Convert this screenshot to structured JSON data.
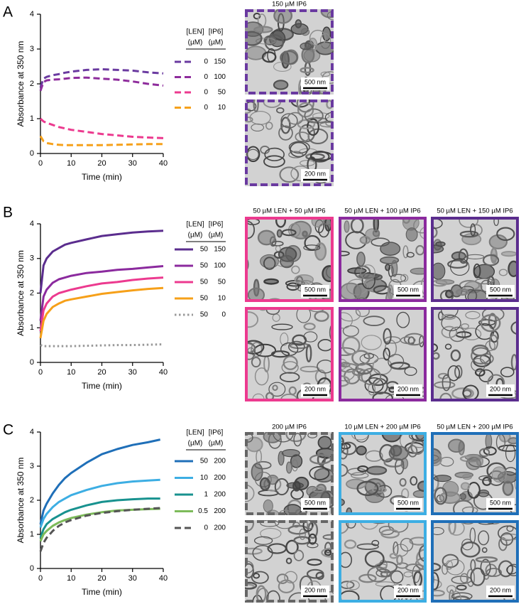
{
  "chart_data": [
    {
      "type": "line",
      "panel": "A",
      "xlabel": "Time (min)",
      "ylabel": "Absorbance at 350 nm",
      "x": [
        0,
        1,
        2,
        4,
        6,
        8,
        10,
        15,
        20,
        25,
        30,
        35,
        40
      ],
      "xlim": [
        0,
        40
      ],
      "xticks": [
        0,
        10,
        20,
        30,
        40
      ],
      "ylim": [
        0,
        4
      ],
      "yticks": [
        0,
        1,
        2,
        3,
        4
      ],
      "legend": {
        "columns": [
          "[LEN]",
          "[IP6]"
        ],
        "units": [
          "(µM)",
          "(µM)"
        ]
      },
      "series": [
        {
          "len": 0,
          "ip6": 150,
          "color": "#6a3aa0",
          "dash": "dashed",
          "values": [
            1.9,
            2.15,
            2.2,
            2.25,
            2.28,
            2.32,
            2.35,
            2.4,
            2.42,
            2.4,
            2.38,
            2.33,
            2.3
          ]
        },
        {
          "len": 0,
          "ip6": 100,
          "color": "#8e2c9c",
          "dash": "dashed",
          "values": [
            1.8,
            2.05,
            2.1,
            2.12,
            2.13,
            2.15,
            2.17,
            2.18,
            2.15,
            2.12,
            2.07,
            2.0,
            1.95
          ]
        },
        {
          "len": 0,
          "ip6": 50,
          "color": "#ec3a8f",
          "dash": "dashed",
          "values": [
            1.0,
            0.92,
            0.88,
            0.82,
            0.76,
            0.72,
            0.68,
            0.62,
            0.56,
            0.52,
            0.48,
            0.46,
            0.44
          ]
        },
        {
          "len": 0,
          "ip6": 10,
          "color": "#f6a11b",
          "dash": "dashed",
          "values": [
            0.5,
            0.35,
            0.3,
            0.27,
            0.25,
            0.24,
            0.24,
            0.24,
            0.24,
            0.25,
            0.26,
            0.27,
            0.27
          ]
        }
      ],
      "images": [
        {
          "title": "150 µM IP6",
          "color": "#6a3aa0",
          "border": "dashed",
          "scale_bars": [
            "500 nm",
            "200 nm"
          ]
        }
      ]
    },
    {
      "type": "line",
      "panel": "B",
      "xlabel": "Time (min)",
      "ylabel": "Absorbance at 350 nm",
      "x": [
        0,
        1,
        2,
        4,
        6,
        8,
        10,
        15,
        20,
        25,
        30,
        35,
        40
      ],
      "xlim": [
        0,
        40
      ],
      "xticks": [
        0,
        10,
        20,
        30,
        40
      ],
      "ylim": [
        0,
        4
      ],
      "yticks": [
        0,
        1,
        2,
        3,
        4
      ],
      "legend": {
        "columns": [
          "[LEN]",
          "[IP6]"
        ],
        "units": [
          "(µM)",
          "(µM)"
        ]
      },
      "series": [
        {
          "len": 50,
          "ip6": 150,
          "color": "#5b2d8e",
          "dash": "solid",
          "values": [
            2.0,
            2.8,
            3.0,
            3.2,
            3.3,
            3.4,
            3.45,
            3.55,
            3.65,
            3.7,
            3.75,
            3.78,
            3.8
          ]
        },
        {
          "len": 50,
          "ip6": 100,
          "color": "#8b2a9e",
          "dash": "solid",
          "values": [
            1.2,
            1.9,
            2.1,
            2.3,
            2.4,
            2.45,
            2.5,
            2.58,
            2.62,
            2.67,
            2.7,
            2.74,
            2.78
          ]
        },
        {
          "len": 50,
          "ip6": 50,
          "color": "#ec3a8f",
          "dash": "solid",
          "values": [
            0.9,
            1.5,
            1.7,
            1.9,
            2.0,
            2.05,
            2.1,
            2.2,
            2.28,
            2.32,
            2.38,
            2.42,
            2.45
          ]
        },
        {
          "len": 50,
          "ip6": 10,
          "color": "#f6a019",
          "dash": "solid",
          "values": [
            0.7,
            1.2,
            1.4,
            1.6,
            1.7,
            1.78,
            1.82,
            1.9,
            1.98,
            2.03,
            2.08,
            2.12,
            2.15
          ]
        },
        {
          "len": 50,
          "ip6": 0,
          "color": "#999999",
          "dash": "dotted",
          "values": [
            0.5,
            0.47,
            0.47,
            0.47,
            0.47,
            0.47,
            0.47,
            0.48,
            0.49,
            0.5,
            0.5,
            0.51,
            0.52
          ]
        }
      ],
      "images": [
        {
          "title": "50 µM LEN + 50 µM IP6",
          "color": "#ec3a8f",
          "border": "solid",
          "scale_bars": [
            "500 nm",
            "200 nm"
          ]
        },
        {
          "title": "50 µM LEN + 100 µM IP6",
          "color": "#8b2a9e",
          "border": "solid",
          "scale_bars": [
            "500 nm",
            "200 nm"
          ]
        },
        {
          "title": "50 µM LEN + 150 µM IP6",
          "color": "#5b2d8e",
          "border": "solid",
          "scale_bars": [
            "500 nm",
            "200 nm"
          ]
        }
      ]
    },
    {
      "type": "line",
      "panel": "C",
      "xlabel": "Time (min)",
      "ylabel": "Absorbance at 350 nm",
      "x": [
        0,
        1,
        2,
        4,
        6,
        8,
        10,
        15,
        20,
        25,
        30,
        35,
        39
      ],
      "xlim": [
        0,
        40
      ],
      "xticks": [
        0,
        10,
        20,
        30,
        40
      ],
      "ylim": [
        0,
        4
      ],
      "yticks": [
        0,
        1,
        2,
        3,
        4
      ],
      "legend": {
        "columns": [
          "[LEN]",
          "[IP6]"
        ],
        "units": [
          "(µM)",
          "(µM)"
        ]
      },
      "series": [
        {
          "len": 50,
          "ip6": 200,
          "color": "#1f6fb8",
          "dash": "solid",
          "values": [
            1.3,
            1.7,
            1.9,
            2.2,
            2.45,
            2.65,
            2.8,
            3.1,
            3.35,
            3.5,
            3.62,
            3.7,
            3.78
          ]
        },
        {
          "len": 10,
          "ip6": 200,
          "color": "#3daee3",
          "dash": "solid",
          "values": [
            1.2,
            1.45,
            1.6,
            1.8,
            1.95,
            2.05,
            2.15,
            2.3,
            2.42,
            2.5,
            2.55,
            2.58,
            2.6
          ]
        },
        {
          "len": 1,
          "ip6": 200,
          "color": "#18928f",
          "dash": "solid",
          "values": [
            0.9,
            1.15,
            1.3,
            1.45,
            1.55,
            1.65,
            1.72,
            1.85,
            1.95,
            2.0,
            2.03,
            2.05,
            2.05
          ]
        },
        {
          "len": 0.5,
          "ip6": 200,
          "color": "#7dbb5a",
          "dash": "solid",
          "values": [
            0.8,
            1.0,
            1.1,
            1.25,
            1.35,
            1.42,
            1.48,
            1.58,
            1.65,
            1.7,
            1.72,
            1.74,
            1.75
          ]
        },
        {
          "len": 0,
          "ip6": 200,
          "color": "#555555",
          "dash": "dashed",
          "values": [
            0.5,
            0.75,
            0.9,
            1.1,
            1.25,
            1.35,
            1.42,
            1.55,
            1.63,
            1.68,
            1.72,
            1.75,
            1.77
          ]
        }
      ],
      "images": [
        {
          "title": "200 µM IP6",
          "color": "#666666",
          "border": "dashed",
          "scale_bars": [
            "500 nm",
            "200 nm"
          ]
        },
        {
          "title": "10 µM LEN + 200 µM IP6",
          "color": "#3daee3",
          "border": "solid",
          "scale_bars": [
            "500 nm",
            "200 nm"
          ]
        },
        {
          "title": "50 µM LEN + 200 µM IP6",
          "color": "#1f6fb8",
          "border": "solid",
          "scale_bars": [
            "500 nm",
            "200 nm"
          ]
        }
      ]
    }
  ]
}
